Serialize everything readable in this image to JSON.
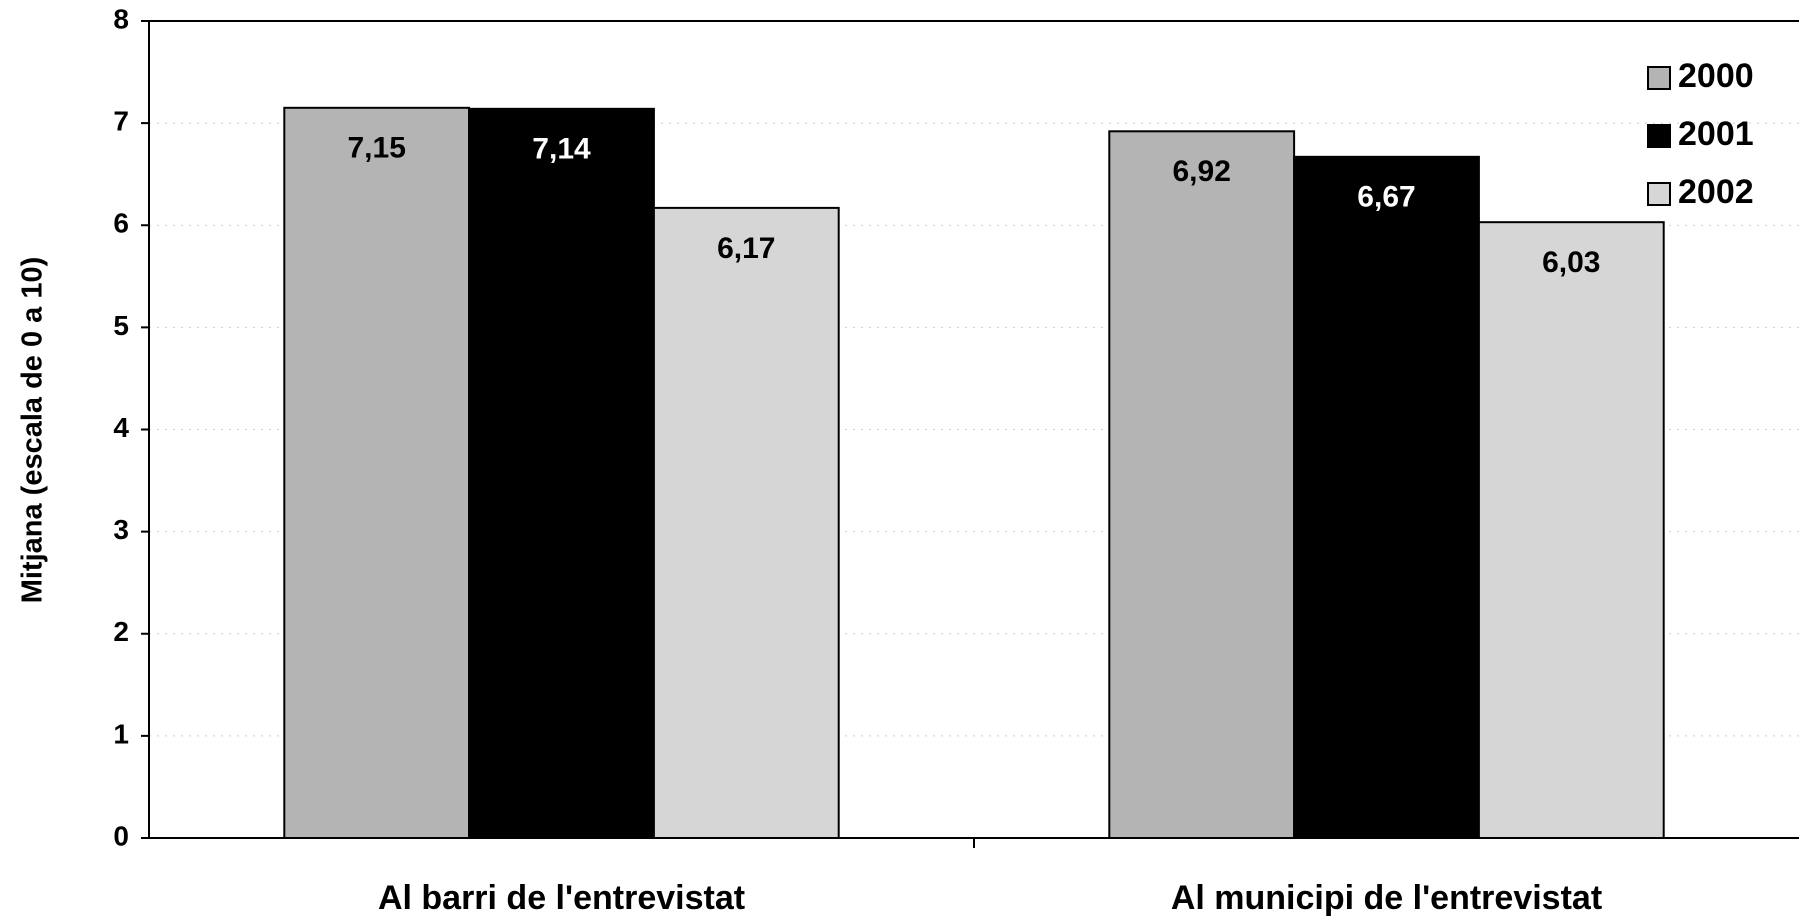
{
  "chart_data": {
    "type": "bar",
    "y_label": "Mitjana (escala de 0 a 10)",
    "categories": [
      "Al barri de l'entrevistat",
      "Al municipi de l'entrevistat"
    ],
    "series": [
      {
        "name": "2000",
        "color": "#b4b4b4",
        "values": [
          7.15,
          6.92
        ],
        "value_labels": [
          "7,15",
          "6,92"
        ]
      },
      {
        "name": "2001",
        "color": "#000000",
        "values": [
          7.14,
          6.67
        ],
        "value_labels": [
          "7,14",
          "6,67"
        ]
      },
      {
        "name": "2002",
        "color": "#d6d6d6",
        "values": [
          6.17,
          6.03
        ],
        "value_labels": [
          "6,17",
          "6,03"
        ]
      }
    ],
    "ylim": [
      0,
      8
    ],
    "yticks": [
      0,
      1,
      2,
      3,
      4,
      5,
      6,
      7,
      8
    ],
    "grid": true,
    "legend": "top-right"
  }
}
